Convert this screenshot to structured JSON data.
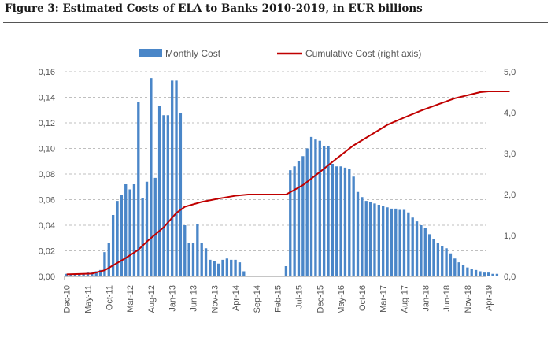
{
  "figure": {
    "title": "Figure 3: Estimated Costs of ELA to Banks 2010-2019, in EUR billions"
  },
  "chart_data": {
    "type": "bar",
    "x_tick_labels": [
      "Dec-10",
      "May-11",
      "Oct-11",
      "Mar-12",
      "Aug-12",
      "Jan-13",
      "Jun-13",
      "Nov-13",
      "Apr-14",
      "Sep-14",
      "Feb-15",
      "Jul-15",
      "Dec-15",
      "May-16",
      "Oct-16",
      "Mar-17",
      "Aug-17",
      "Jan-18",
      "Jun-18",
      "Nov-18",
      "Apr-19"
    ],
    "x_start": "Dec-10",
    "x_end": "Apr-19",
    "y_left_ticks": [
      "0,00",
      "0,02",
      "0,04",
      "0,06",
      "0,08",
      "0,10",
      "0,12",
      "0,14",
      "0,16"
    ],
    "y_left_range": [
      0,
      0.16
    ],
    "y_right_ticks": [
      "0,0",
      "1,0",
      "2,0",
      "3,0",
      "4,0",
      "5,0"
    ],
    "y_right_range": [
      0,
      5
    ],
    "grid": "horizontal dashed",
    "legend_position": "top",
    "series": [
      {
        "name": "Monthly Cost",
        "type": "bar",
        "axis": "left",
        "color": "#4a86c8",
        "values": [
          0.002,
          0.002,
          0.002,
          0.002,
          0.002,
          0.003,
          0.003,
          0.004,
          0.005,
          0.019,
          0.026,
          0.048,
          0.059,
          0.064,
          0.072,
          0.068,
          0.072,
          0.136,
          0.061,
          0.074,
          0.155,
          0.077,
          0.133,
          0.126,
          0.126,
          0.153,
          0.153,
          0.128,
          0.04,
          0.026,
          0.026,
          0.041,
          0.026,
          0.022,
          0.013,
          0.012,
          0.01,
          0.013,
          0.014,
          0.013,
          0.013,
          0.011,
          0.004,
          0,
          0,
          0,
          0,
          0,
          0,
          0,
          0,
          0,
          0.008,
          0.083,
          0.086,
          0.09,
          0.094,
          0.1,
          0.109,
          0.107,
          0.106,
          0.102,
          0.102,
          0.088,
          0.086,
          0.086,
          0.085,
          0.084,
          0.078,
          0.066,
          0.062,
          0.059,
          0.058,
          0.057,
          0.056,
          0.055,
          0.054,
          0.053,
          0.053,
          0.052,
          0.052,
          0.05,
          0.046,
          0.043,
          0.04,
          0.038,
          0.033,
          0.029,
          0.026,
          0.024,
          0.022,
          0.018,
          0.014,
          0.011,
          0.009,
          0.007,
          0.006,
          0.005,
          0.004,
          0.003,
          0.003,
          0.002,
          0.002
        ]
      },
      {
        "name": "Cumulative Cost (right axis)",
        "type": "line",
        "axis": "right",
        "color": "#c00000",
        "points": [
          [
            0,
            0.05
          ],
          [
            6,
            0.07
          ],
          [
            9,
            0.15
          ],
          [
            14,
            0.45
          ],
          [
            17,
            0.65
          ],
          [
            19,
            0.85
          ],
          [
            23,
            1.2
          ],
          [
            26,
            1.55
          ],
          [
            28,
            1.7
          ],
          [
            32,
            1.82
          ],
          [
            36,
            1.9
          ],
          [
            40,
            1.97
          ],
          [
            43,
            2.0
          ],
          [
            52,
            2.0
          ],
          [
            56,
            2.23
          ],
          [
            60,
            2.55
          ],
          [
            64,
            2.88
          ],
          [
            68,
            3.2
          ],
          [
            72,
            3.45
          ],
          [
            76,
            3.7
          ],
          [
            80,
            3.88
          ],
          [
            84,
            4.05
          ],
          [
            88,
            4.2
          ],
          [
            92,
            4.35
          ],
          [
            96,
            4.45
          ],
          [
            98,
            4.5
          ],
          [
            100,
            4.52
          ],
          [
            105,
            4.52
          ]
        ]
      }
    ]
  }
}
